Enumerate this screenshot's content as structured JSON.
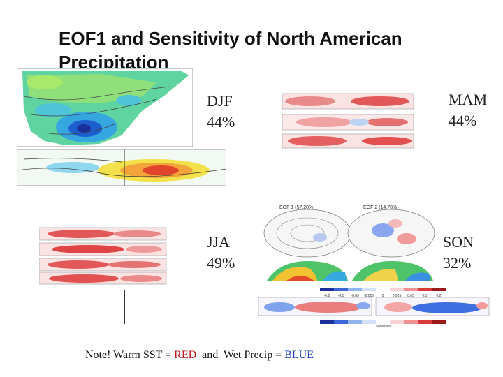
{
  "slide": {
    "title": "EOF1 and Sensitivity of North American Precipitation"
  },
  "seasons": [
    {
      "name": "DJF",
      "variance": "44%"
    },
    {
      "name": "MAM",
      "variance": "44%"
    },
    {
      "name": "JJA",
      "variance": "49%"
    },
    {
      "name": "SON",
      "variance": "32%"
    }
  ],
  "note": {
    "prefix": "Note! Warm SST = ",
    "warm_word": "RED",
    "middle": "  and  Wet Precip = ",
    "wet_word": "BLUE",
    "warm_color": "#b81a1a",
    "wet_color": "#1a3fb8"
  },
  "figures": {
    "polar_maps": {
      "left_title": "EOF 1 (57.20%)",
      "right_title": "EOF 2 (14.78%)"
    },
    "colorbar_ticks": [
      "-0.2",
      "-0.1",
      "-0.05",
      "-0.025",
      "0",
      "0.025",
      "0.05",
      "0.1",
      "0.2"
    ],
    "colorbar_label": "Sensitivity"
  }
}
